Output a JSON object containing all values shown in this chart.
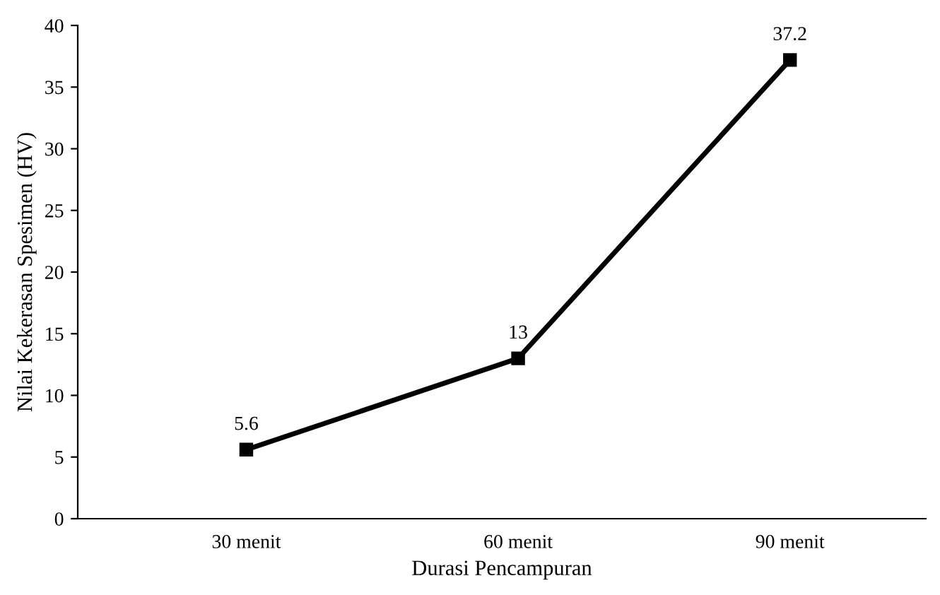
{
  "chart_data": {
    "type": "line",
    "xlabel": "Durasi Pencampuran",
    "ylabel": "Nilai Kekerasan Spesimen (HV)",
    "categories": [
      "30 menit",
      "60 menit",
      "90 menit"
    ],
    "series": [
      {
        "color": "#000000",
        "values": [
          5.6,
          13,
          37.2
        ]
      }
    ],
    "ylim": [
      0,
      40
    ],
    "yticks": [
      0,
      5,
      10,
      15,
      20,
      25,
      30,
      35,
      40
    ],
    "grid": false,
    "legend": false,
    "marker": "square",
    "line_style": "solid",
    "data_labels": true
  }
}
